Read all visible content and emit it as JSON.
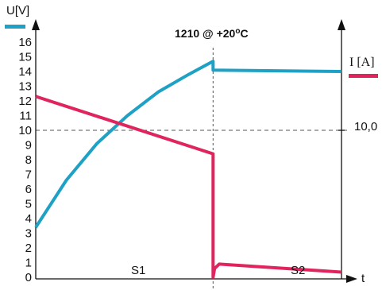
{
  "chart_data": {
    "type": "line",
    "title": "1210 @ +20",
    "title_sup": "o",
    "title_unit": "C",
    "x_axis_label": "t",
    "left_axis_label": "U[V]",
    "right_axis_label": "I [A]",
    "left_ylim": [
      0,
      16
    ],
    "left_yticks": [
      "0",
      "1",
      "2",
      "3",
      "4",
      "5",
      "6",
      "7",
      "8",
      "9",
      "10",
      "11",
      "12",
      "13",
      "14",
      "15",
      "16"
    ],
    "right_tick_label": "10,0",
    "right_tick_value": 10,
    "reference_level": 10,
    "phases": [
      "S1",
      "S2"
    ],
    "phase_switch_t": 0.58,
    "colors": {
      "voltage": "#1ea1c4",
      "current": "#e0245e",
      "axis": "#111111",
      "guide": "#555555"
    },
    "series": [
      {
        "name": "U[V]",
        "axis": "left",
        "color": "#1ea1c4",
        "points": [
          [
            0.0,
            3.4
          ],
          [
            0.1,
            6.6
          ],
          [
            0.2,
            9.1
          ],
          [
            0.3,
            11.0
          ],
          [
            0.4,
            12.6
          ],
          [
            0.5,
            13.8
          ],
          [
            0.58,
            14.7
          ],
          [
            0.58,
            14.1
          ],
          [
            1.0,
            14.0
          ]
        ]
      },
      {
        "name": "I [A]",
        "axis": "right",
        "color": "#e0245e",
        "points": [
          [
            0.0,
            12.3
          ],
          [
            0.58,
            8.4
          ],
          [
            0.58,
            0.0
          ],
          [
            0.585,
            0.6
          ],
          [
            0.6,
            0.9
          ],
          [
            1.0,
            0.35
          ]
        ]
      }
    ]
  }
}
